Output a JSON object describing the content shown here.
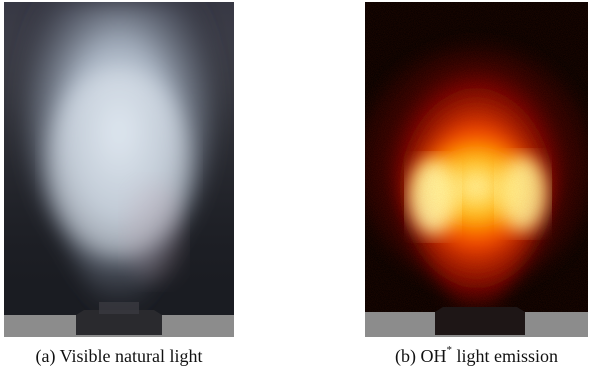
{
  "figure": {
    "panel_a": {
      "caption": "(a) Visible natural light",
      "colors": {
        "background": "#1a1c22",
        "glow": "#dde6f0",
        "base": "#8c8c8c",
        "burner": "#2a2a2e"
      }
    },
    "panel_b": {
      "caption_main": "(b) OH",
      "caption_sup": "*",
      "caption_rest": " light emission",
      "colors": {
        "background": "#070000",
        "hot": "#ffffb0",
        "mid": "#ff3000",
        "base": "#8c8c8c",
        "burner": "#1e1616"
      }
    }
  }
}
